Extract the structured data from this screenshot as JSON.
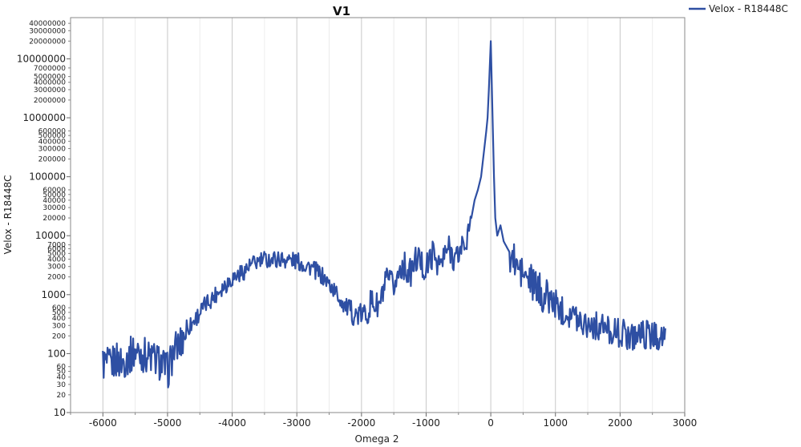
{
  "chart_data": {
    "type": "line",
    "title": "V1",
    "xlabel": "Omega 2",
    "ylabel": "Velox - R18448C",
    "xlim": [
      -6500,
      3000
    ],
    "ylim": [
      10,
      50000000
    ],
    "yscale": "log",
    "grid": "vertical",
    "legend_position": "top-right",
    "x_ticks": [
      -6000,
      -5000,
      -4000,
      -3000,
      -2000,
      -1000,
      0,
      1000,
      2000,
      3000
    ],
    "x_tick_labels": [
      "-6000",
      "-5000",
      "-4000",
      "-3000",
      "-2000",
      "-1000",
      "0",
      "1000",
      "2000",
      "3000"
    ],
    "y_major_ticks": [
      10,
      100,
      1000,
      10000,
      100000,
      1000000,
      10000000
    ],
    "y_major_labels": [
      "10",
      "100",
      "1000",
      "10000",
      "100000",
      "1000000",
      "10000000"
    ],
    "y_minor_ticks": [
      20,
      30,
      40,
      50,
      60,
      200,
      300,
      400,
      500,
      600,
      2000,
      3000,
      4000,
      5000,
      6000,
      7000,
      20000,
      30000,
      40000,
      50000,
      60000,
      200000,
      300000,
      400000,
      500000,
      600000,
      2000000,
      3000000,
      4000000,
      5000000,
      7000000,
      20000000,
      30000000,
      40000000
    ],
    "y_minor_labels": [
      "20",
      "30",
      "40",
      "50",
      "60",
      "200",
      "300",
      "400",
      "500",
      "600",
      "2000",
      "3000",
      "4000",
      "5000",
      "6000",
      "7000",
      "20000",
      "30000",
      "40000",
      "50000",
      "60000",
      "200000",
      "300000",
      "400000",
      "500000",
      "600000",
      "2000000",
      "3000000",
      "4000000",
      "5000000",
      "7000000",
      "20000000",
      "30000000",
      "40000000"
    ],
    "series": [
      {
        "name": "Velox - R18448C",
        "color": "#2e4fa3",
        "x": [
          -6000,
          -5900,
          -5800,
          -5700,
          -5600,
          -5500,
          -5400,
          -5300,
          -5200,
          -5100,
          -5000,
          -4900,
          -4800,
          -4700,
          -4600,
          -4500,
          -4400,
          -4300,
          -4200,
          -4100,
          -4000,
          -3900,
          -3800,
          -3700,
          -3600,
          -3500,
          -3400,
          -3300,
          -3200,
          -3100,
          -3000,
          -2900,
          -2800,
          -2700,
          -2600,
          -2500,
          -2400,
          -2300,
          -2200,
          -2100,
          -2000,
          -1900,
          -1800,
          -1700,
          -1600,
          -1500,
          -1400,
          -1300,
          -1200,
          -1100,
          -1000,
          -900,
          -800,
          -700,
          -600,
          -500,
          -400,
          -300,
          -250,
          -200,
          -150,
          -100,
          -70,
          -50,
          -30,
          0,
          30,
          50,
          70,
          100,
          150,
          200,
          300,
          400,
          500,
          600,
          700,
          800,
          900,
          1000,
          1100,
          1200,
          1300,
          1400,
          1500,
          1600,
          1700,
          1800,
          1900,
          2000,
          2100,
          2200,
          2300,
          2400,
          2500,
          2600,
          2700
        ],
        "y": [
          70,
          60,
          80,
          70,
          90,
          110,
          100,
          90,
          80,
          70,
          50,
          110,
          150,
          260,
          350,
          500,
          700,
          900,
          1200,
          1500,
          1900,
          2200,
          2600,
          3200,
          3600,
          3900,
          4000,
          4000,
          4000,
          3900,
          3700,
          3300,
          3000,
          2500,
          2000,
          1500,
          1100,
          750,
          550,
          450,
          450,
          500,
          650,
          900,
          1300,
          1800,
          2400,
          2800,
          3100,
          3300,
          3500,
          3800,
          4100,
          4500,
          5000,
          5500,
          6000,
          20000,
          40000,
          60000,
          100000,
          300000,
          600000,
          1000000,
          3000000,
          20000000,
          800000,
          100000,
          20000,
          10000,
          15000,
          8000,
          5000,
          3000,
          2200,
          1700,
          1300,
          1000,
          850,
          700,
          550,
          500,
          430,
          370,
          330,
          300,
          280,
          260,
          240,
          220,
          210,
          200,
          220,
          210,
          200,
          200,
          200
        ]
      }
    ]
  }
}
